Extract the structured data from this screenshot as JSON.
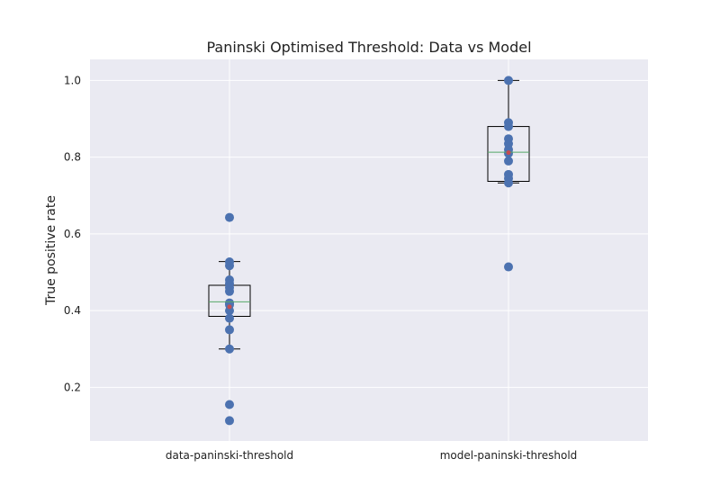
{
  "chart_data": {
    "type": "boxplot",
    "title": "Paninski Optimised Threshold: Data vs Model",
    "xlabel": "",
    "ylabel": "True positive rate",
    "categories": [
      "data-paninski-threshold",
      "model-paninski-threshold"
    ],
    "ylim": [
      0.06,
      1.055
    ],
    "yticks": [
      0.2,
      0.4,
      0.6,
      0.8,
      1.0
    ],
    "ytick_labels": [
      "0.2",
      "0.4",
      "0.6",
      "0.8",
      "1.0"
    ],
    "grid": true,
    "colors": {
      "background": "#eaeaf2",
      "grid": "#ffffff",
      "points": "#4c72b0",
      "median": "#55a868",
      "mean": "#c44e52",
      "box": "#000000"
    },
    "series": [
      {
        "category": "data-paninski-threshold",
        "box": {
          "whisker_low": 0.3,
          "q1": 0.385,
          "median": 0.423,
          "q3": 0.466,
          "whisker_high": 0.528
        },
        "mean": 0.41,
        "points": [
          0.643,
          0.527,
          0.517,
          0.48,
          0.47,
          0.46,
          0.45,
          0.42,
          0.415,
          0.4,
          0.38,
          0.35,
          0.3,
          0.155,
          0.113
        ]
      },
      {
        "category": "model-paninski-threshold",
        "box": {
          "whisker_low": 0.733,
          "q1": 0.737,
          "median": 0.813,
          "q3": 0.88,
          "whisker_high": 1.0
        },
        "mean": 0.812,
        "points": [
          1.0,
          0.89,
          0.88,
          0.848,
          0.835,
          0.82,
          0.81,
          0.79,
          0.755,
          0.745,
          0.733,
          0.514
        ]
      }
    ]
  }
}
